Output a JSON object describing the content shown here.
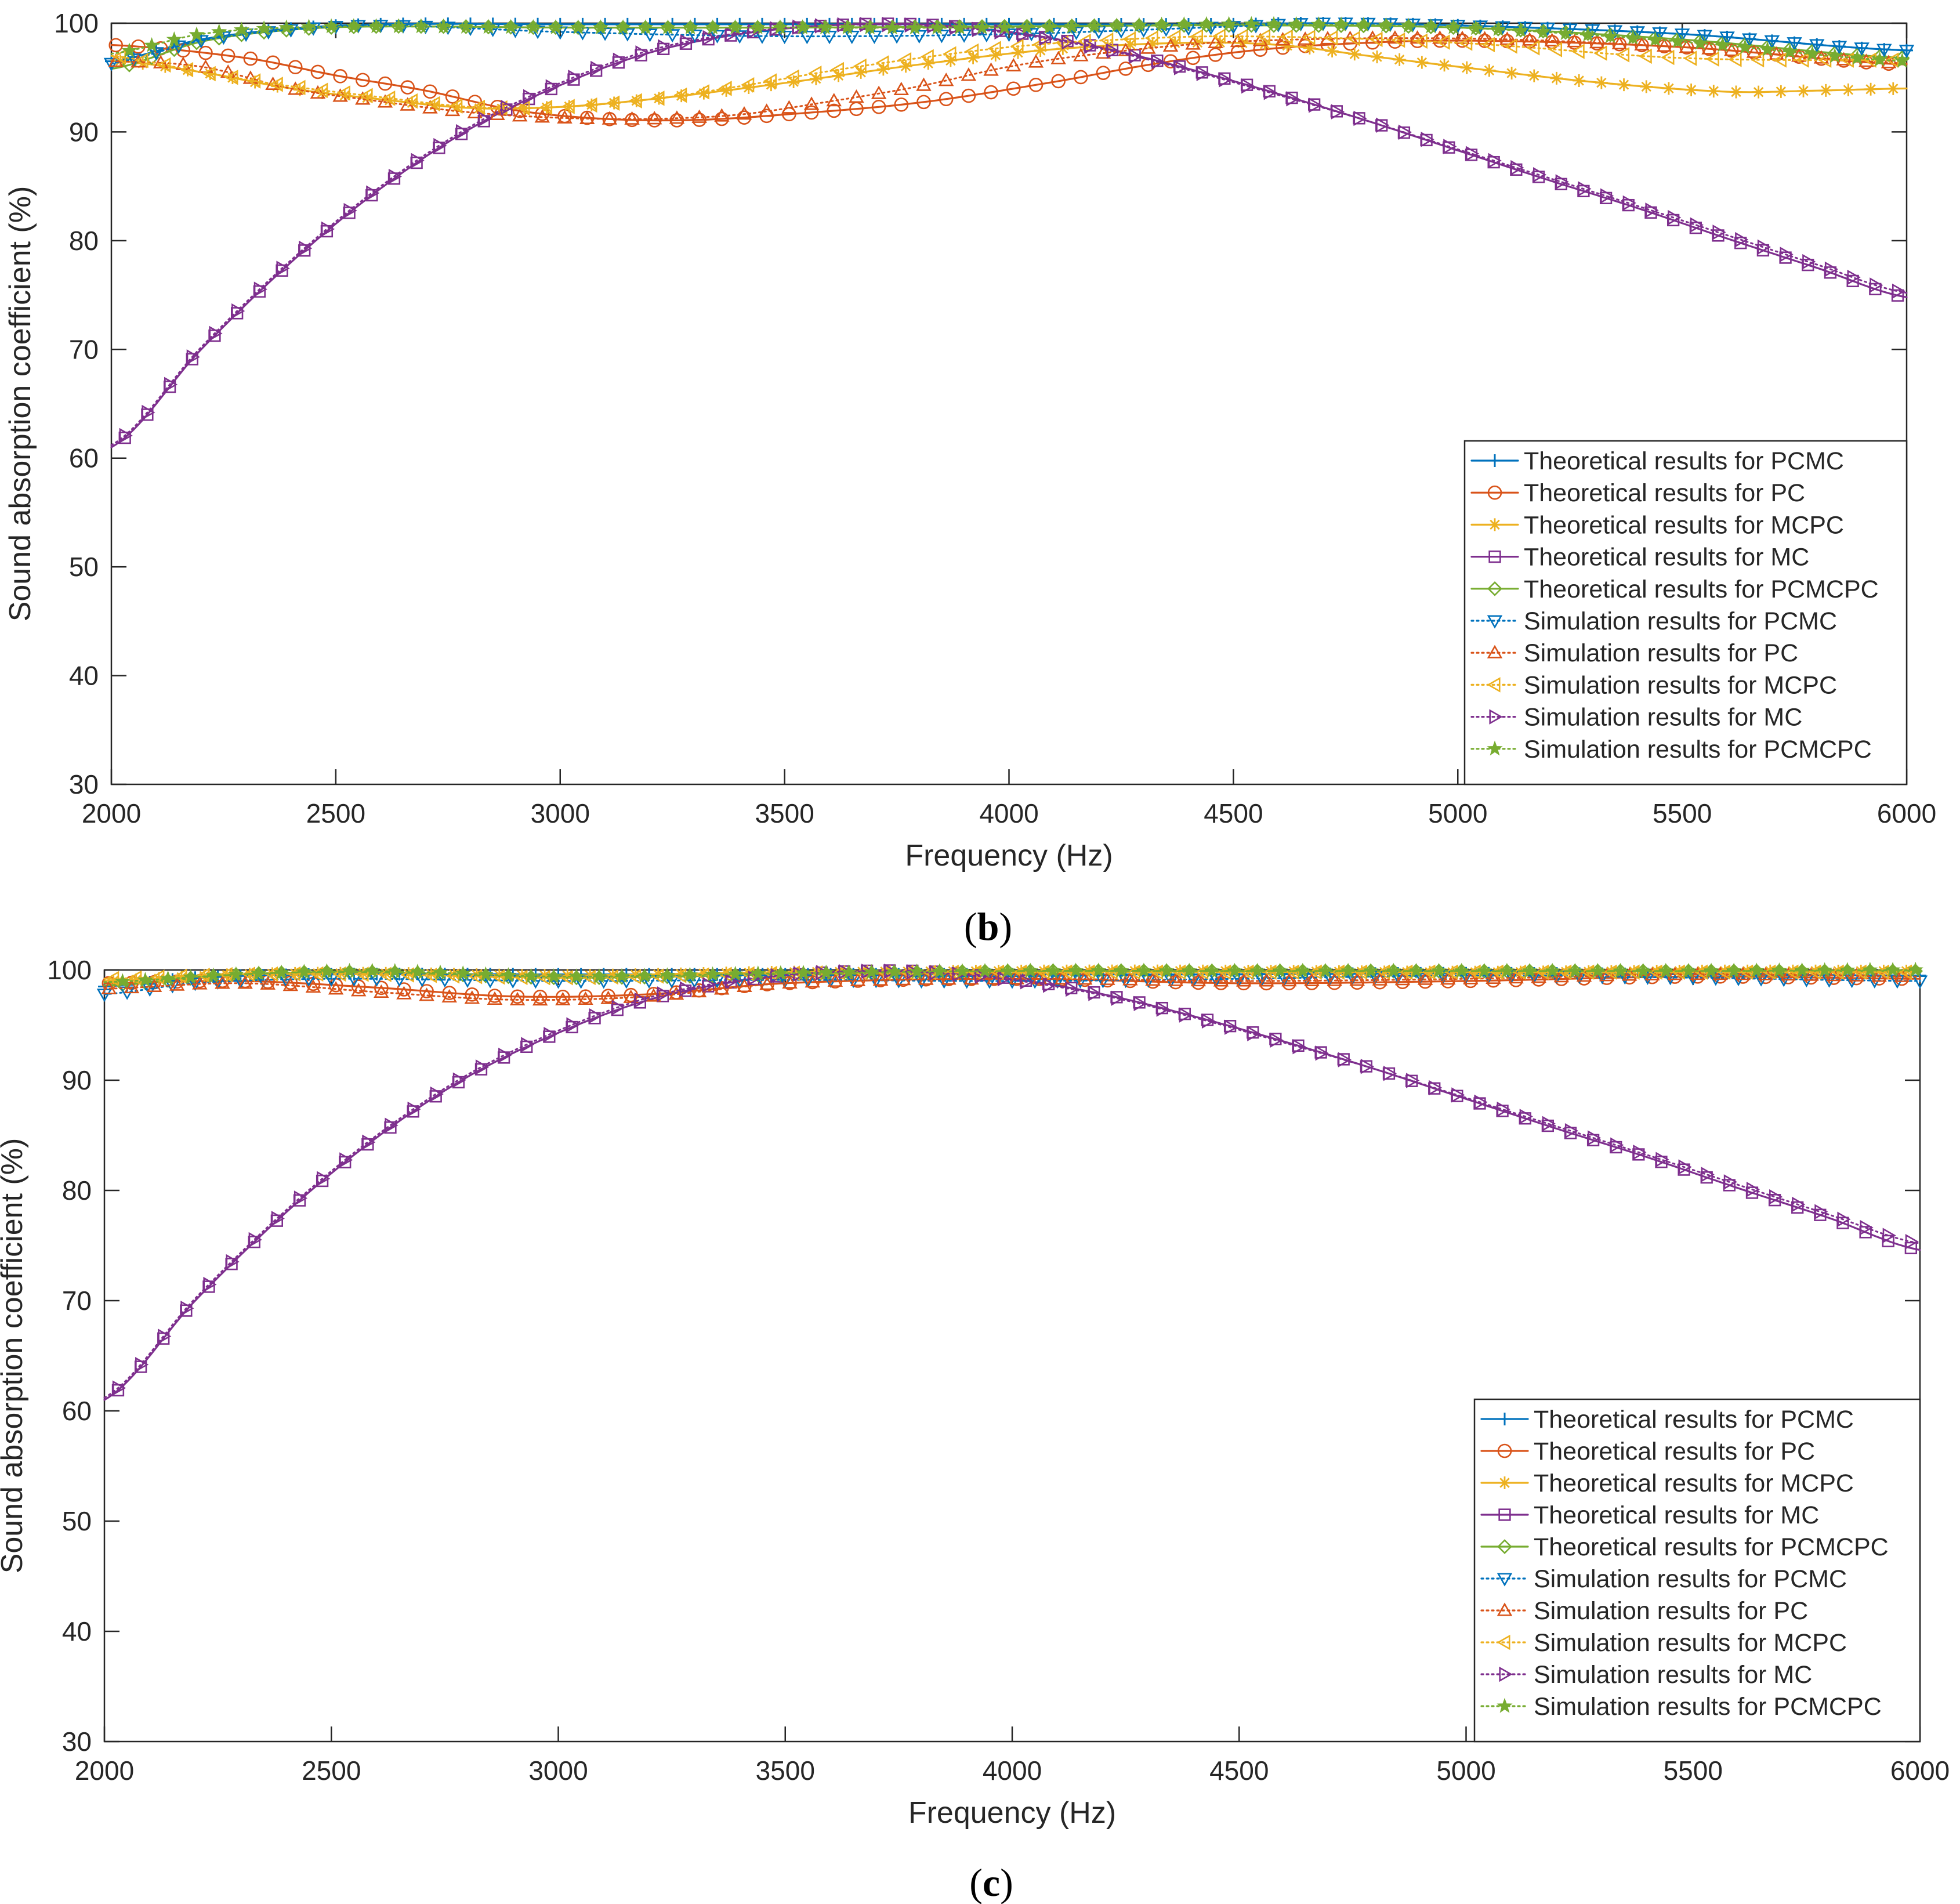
{
  "chart_data": [
    {
      "type": "line",
      "panel_label": "b",
      "title": "",
      "xlabel": "Frequency (Hz)",
      "ylabel": "Sound absorption coefficient (%)",
      "xlim": [
        2000,
        6000
      ],
      "ylim": [
        30,
        100
      ],
      "xticks": [
        2000,
        2500,
        3000,
        3500,
        4000,
        4500,
        5000,
        5500,
        6000
      ],
      "yticks": [
        30,
        40,
        50,
        60,
        70,
        80,
        90,
        100
      ],
      "grid": false,
      "legend_position": "bottom-right",
      "series": [
        {
          "name": "Theoretical results for PCMC",
          "style": "solid",
          "marker": "plus",
          "color": "#0072BD",
          "x": [
            2000,
            2200,
            2400,
            2600,
            3000,
            3500,
            4000,
            4500,
            4700,
            5000,
            5500,
            6000
          ],
          "y": [
            96.5,
            98.5,
            99.5,
            99.9,
            99.9,
            99.9,
            99.9,
            99.9,
            100,
            99.8,
            99,
            97.5
          ]
        },
        {
          "name": "Theoretical results for PC",
          "style": "solid",
          "marker": "circle",
          "color": "#D95319",
          "x": [
            2000,
            2300,
            2500,
            2700,
            2900,
            3100,
            3300,
            3500,
            3800,
            4100,
            4300,
            4500,
            4700,
            5000,
            5500,
            6000
          ],
          "y": [
            98.0,
            96.8,
            95.2,
            93.8,
            92.0,
            91.2,
            91.1,
            91.6,
            92.7,
            94.6,
            96.1,
            97.3,
            98.0,
            98.4,
            97.8,
            96.2
          ]
        },
        {
          "name": "Theoretical results for MCPC",
          "style": "solid",
          "marker": "asterisk",
          "color": "#EDB120",
          "x": [
            2000,
            2200,
            2400,
            2600,
            2800,
            3000,
            3200,
            3500,
            3800,
            4100,
            4400,
            4600,
            4800,
            5000,
            5300,
            5600,
            5800,
            6000
          ],
          "y": [
            96.6,
            95.5,
            94.0,
            93.0,
            92.2,
            92.3,
            93.0,
            94.5,
            96.2,
            97.6,
            98.2,
            98.0,
            97.0,
            96.0,
            94.6,
            93.7,
            93.8,
            94.0
          ]
        },
        {
          "name": "Theoretical results for MC",
          "style": "solid",
          "marker": "square",
          "color": "#7E2F8E",
          "x": [
            2000,
            2200,
            2400,
            2600,
            2800,
            3000,
            3200,
            3400,
            3600,
            3800,
            4000,
            4200,
            4400,
            4600,
            4800,
            5000,
            5200,
            5400,
            5600,
            5800,
            6000
          ],
          "y": [
            61,
            70,
            78,
            84.8,
            90.3,
            94.3,
            97.3,
            99,
            99.8,
            99.9,
            99.2,
            97.8,
            95.8,
            93.5,
            91,
            88.3,
            85.6,
            83,
            80.2,
            77.5,
            74.8
          ]
        },
        {
          "name": "Theoretical results for PCMCPC",
          "style": "solid",
          "marker": "diamond",
          "color": "#77AC30",
          "x": [
            2000,
            2200,
            2400,
            2600,
            3000,
            3500,
            4000,
            4500,
            5000,
            5500,
            6000
          ],
          "y": [
            95.8,
            98.3,
            99.4,
            99.7,
            99.6,
            99.6,
            99.7,
            99.8,
            99.6,
            98.5,
            96.8
          ]
        },
        {
          "name": "Simulation results for PCMC",
          "style": "dotted",
          "marker": "triangle-down",
          "color": "#0072BD",
          "x": [
            2000,
            2200,
            2400,
            2600,
            3000,
            3500,
            4000,
            4500,
            4700,
            5000,
            5500,
            6000
          ],
          "y": [
            96.3,
            98.4,
            99.4,
            99.8,
            99.2,
            98.8,
            99.0,
            99.7,
            100,
            99.8,
            99,
            97.5
          ]
        },
        {
          "name": "Simulation results for PC",
          "style": "dotted",
          "marker": "triangle-up",
          "color": "#D95319",
          "x": [
            2000,
            2200,
            2400,
            2600,
            2800,
            3000,
            3200,
            3400,
            3600,
            3800,
            4000,
            4200,
            4500,
            5000,
            5500,
            6000
          ],
          "y": [
            96.5,
            96.0,
            94.0,
            92.8,
            91.8,
            91.3,
            91.2,
            91.6,
            92.8,
            94.2,
            96.0,
            97.2,
            98.3,
            98.6,
            97.8,
            96.3
          ]
        },
        {
          "name": "Simulation results for MCPC",
          "style": "dotted",
          "marker": "triangle-left",
          "color": "#EDB120",
          "x": [
            2000,
            2200,
            2400,
            2600,
            2800,
            3000,
            3200,
            3400,
            3600,
            3800,
            4000,
            4200,
            4500,
            5000,
            5500,
            6000
          ],
          "y": [
            97.0,
            95.5,
            94.2,
            93.2,
            92.3,
            92.3,
            93.0,
            94.2,
            95.6,
            96.8,
            97.8,
            98.4,
            98.8,
            98.2,
            96.8,
            96.6
          ]
        },
        {
          "name": "Simulation results for MC",
          "style": "dotted",
          "marker": "triangle-right",
          "color": "#7E2F8E",
          "x": [
            2000,
            2200,
            2400,
            2600,
            2800,
            3000,
            3200,
            3400,
            3600,
            3800,
            4000,
            4200,
            4400,
            4600,
            4800,
            5000,
            5200,
            5400,
            5600,
            5800,
            6000
          ],
          "y": [
            61.2,
            70.2,
            78.2,
            85.0,
            90.5,
            94.5,
            97.5,
            99.1,
            99.8,
            99.8,
            99.1,
            97.7,
            95.7,
            93.4,
            91.0,
            88.4,
            85.8,
            83.2,
            80.5,
            77.8,
            75.2
          ]
        },
        {
          "name": "Simulation results for PCMCPC",
          "style": "dotted",
          "marker": "pentagram",
          "color": "#77AC30",
          "x": [
            2000,
            2200,
            2400,
            2600,
            3000,
            3500,
            4000,
            4500,
            5000,
            5500,
            6000
          ],
          "y": [
            97.2,
            99.0,
            99.6,
            99.7,
            99.6,
            99.6,
            99.6,
            99.9,
            99.6,
            98.3,
            96.5
          ]
        }
      ]
    },
    {
      "type": "line",
      "panel_label": "c",
      "title": "",
      "xlabel": "Frequency (Hz)",
      "ylabel": "Sound absorption coefficient (%)",
      "xlim": [
        2000,
        6000
      ],
      "ylim": [
        30,
        100
      ],
      "xticks": [
        2000,
        2500,
        3000,
        3500,
        4000,
        4500,
        5000,
        5500,
        6000
      ],
      "yticks": [
        30,
        40,
        50,
        60,
        70,
        80,
        90,
        100
      ],
      "grid": false,
      "legend_position": "bottom-right",
      "series": [
        {
          "name": "Theoretical results for PCMC",
          "style": "solid",
          "marker": "plus",
          "color": "#0072BD",
          "x": [
            2000,
            2200,
            2500,
            3000,
            3500,
            4000,
            4500,
            5000,
            5500,
            6000
          ],
          "y": [
            98.5,
            99.3,
            99.6,
            99.6,
            99.6,
            99.6,
            99.6,
            99.7,
            99.6,
            99.5
          ]
        },
        {
          "name": "Theoretical results for PC",
          "style": "solid",
          "marker": "circle",
          "color": "#D95319",
          "x": [
            2000,
            2300,
            2600,
            2900,
            3200,
            3500,
            4000,
            4500,
            5000,
            5500,
            6000
          ],
          "y": [
            98.8,
            99.0,
            98.4,
            97.6,
            97.8,
            98.8,
            99.2,
            98.8,
            99.0,
            99.4,
            99.2
          ]
        },
        {
          "name": "Theoretical results for MCPC",
          "style": "solid",
          "marker": "asterisk",
          "color": "#EDB120",
          "x": [
            2000,
            2300,
            2600,
            3000,
            3500,
            4000,
            4500,
            5000,
            5500,
            6000
          ],
          "y": [
            99.0,
            99.6,
            99.7,
            99.5,
            99.8,
            99.9,
            99.9,
            99.8,
            99.9,
            99.9
          ]
        },
        {
          "name": "Theoretical results for MC",
          "style": "solid",
          "marker": "square",
          "color": "#7E2F8E",
          "x": [
            2000,
            2200,
            2400,
            2600,
            2800,
            3000,
            3200,
            3400,
            3600,
            3800,
            4000,
            4200,
            4400,
            4600,
            4800,
            5000,
            5200,
            5400,
            5600,
            5800,
            6000
          ],
          "y": [
            61,
            70,
            78,
            84.8,
            90.3,
            94.3,
            97.3,
            99,
            99.8,
            99.9,
            99.2,
            97.8,
            95.8,
            93.5,
            91,
            88.3,
            85.6,
            83,
            80.2,
            77.5,
            74.6
          ]
        },
        {
          "name": "Theoretical results for PCMCPC",
          "style": "solid",
          "marker": "diamond",
          "color": "#77AC30",
          "x": [
            2000,
            2300,
            2600,
            3000,
            3500,
            4000,
            4500,
            5000,
            5500,
            6000
          ],
          "y": [
            98.6,
            99.6,
            99.8,
            99.3,
            99.6,
            99.9,
            99.9,
            99.9,
            99.9,
            99.9
          ]
        },
        {
          "name": "Simulation results for PCMC",
          "style": "dotted",
          "marker": "triangle-down",
          "color": "#0072BD",
          "x": [
            2000,
            2200,
            2500,
            3000,
            3500,
            4000,
            4500,
            5000,
            5500,
            6000
          ],
          "y": [
            97.8,
            98.8,
            99.2,
            99.0,
            99.1,
            99.0,
            99.2,
            99.5,
            99.3,
            99.0
          ]
        },
        {
          "name": "Simulation results for PC",
          "style": "dotted",
          "marker": "triangle-up",
          "color": "#D95319",
          "x": [
            2000,
            2300,
            2600,
            2900,
            3200,
            3500,
            4000,
            4500,
            5000,
            5500,
            6000
          ],
          "y": [
            98.3,
            98.8,
            98.0,
            97.3,
            97.6,
            98.8,
            99.2,
            99.0,
            99.2,
            99.6,
            99.4
          ]
        },
        {
          "name": "Simulation results for MCPC",
          "style": "dotted",
          "marker": "triangle-left",
          "color": "#EDB120",
          "x": [
            2000,
            2300,
            2600,
            3000,
            3500,
            4000,
            4500,
            5000,
            5500,
            6000
          ],
          "y": [
            99.2,
            99.6,
            99.6,
            99.3,
            99.7,
            99.8,
            99.8,
            99.8,
            99.8,
            99.8
          ]
        },
        {
          "name": "Simulation results for MC",
          "style": "dotted",
          "marker": "triangle-right",
          "color": "#7E2F8E",
          "x": [
            2000,
            2200,
            2400,
            2600,
            2800,
            3000,
            3200,
            3400,
            3600,
            3800,
            4000,
            4200,
            4400,
            4600,
            4800,
            5000,
            5200,
            5400,
            5600,
            5800,
            6000
          ],
          "y": [
            61.2,
            70.2,
            78.2,
            85.0,
            90.5,
            94.5,
            97.5,
            99.1,
            99.8,
            99.8,
            99.1,
            97.7,
            95.7,
            93.4,
            91.0,
            88.4,
            85.8,
            83.2,
            80.5,
            77.8,
            75.2
          ]
        },
        {
          "name": "Simulation results for PCMCPC",
          "style": "dotted",
          "marker": "pentagram",
          "color": "#77AC30",
          "x": [
            2000,
            2300,
            2600,
            3000,
            3500,
            4000,
            4500,
            5000,
            5500,
            6000
          ],
          "y": [
            98.9,
            99.6,
            99.9,
            99.4,
            99.7,
            99.9,
            99.9,
            99.9,
            99.9,
            100
          ]
        }
      ]
    }
  ]
}
